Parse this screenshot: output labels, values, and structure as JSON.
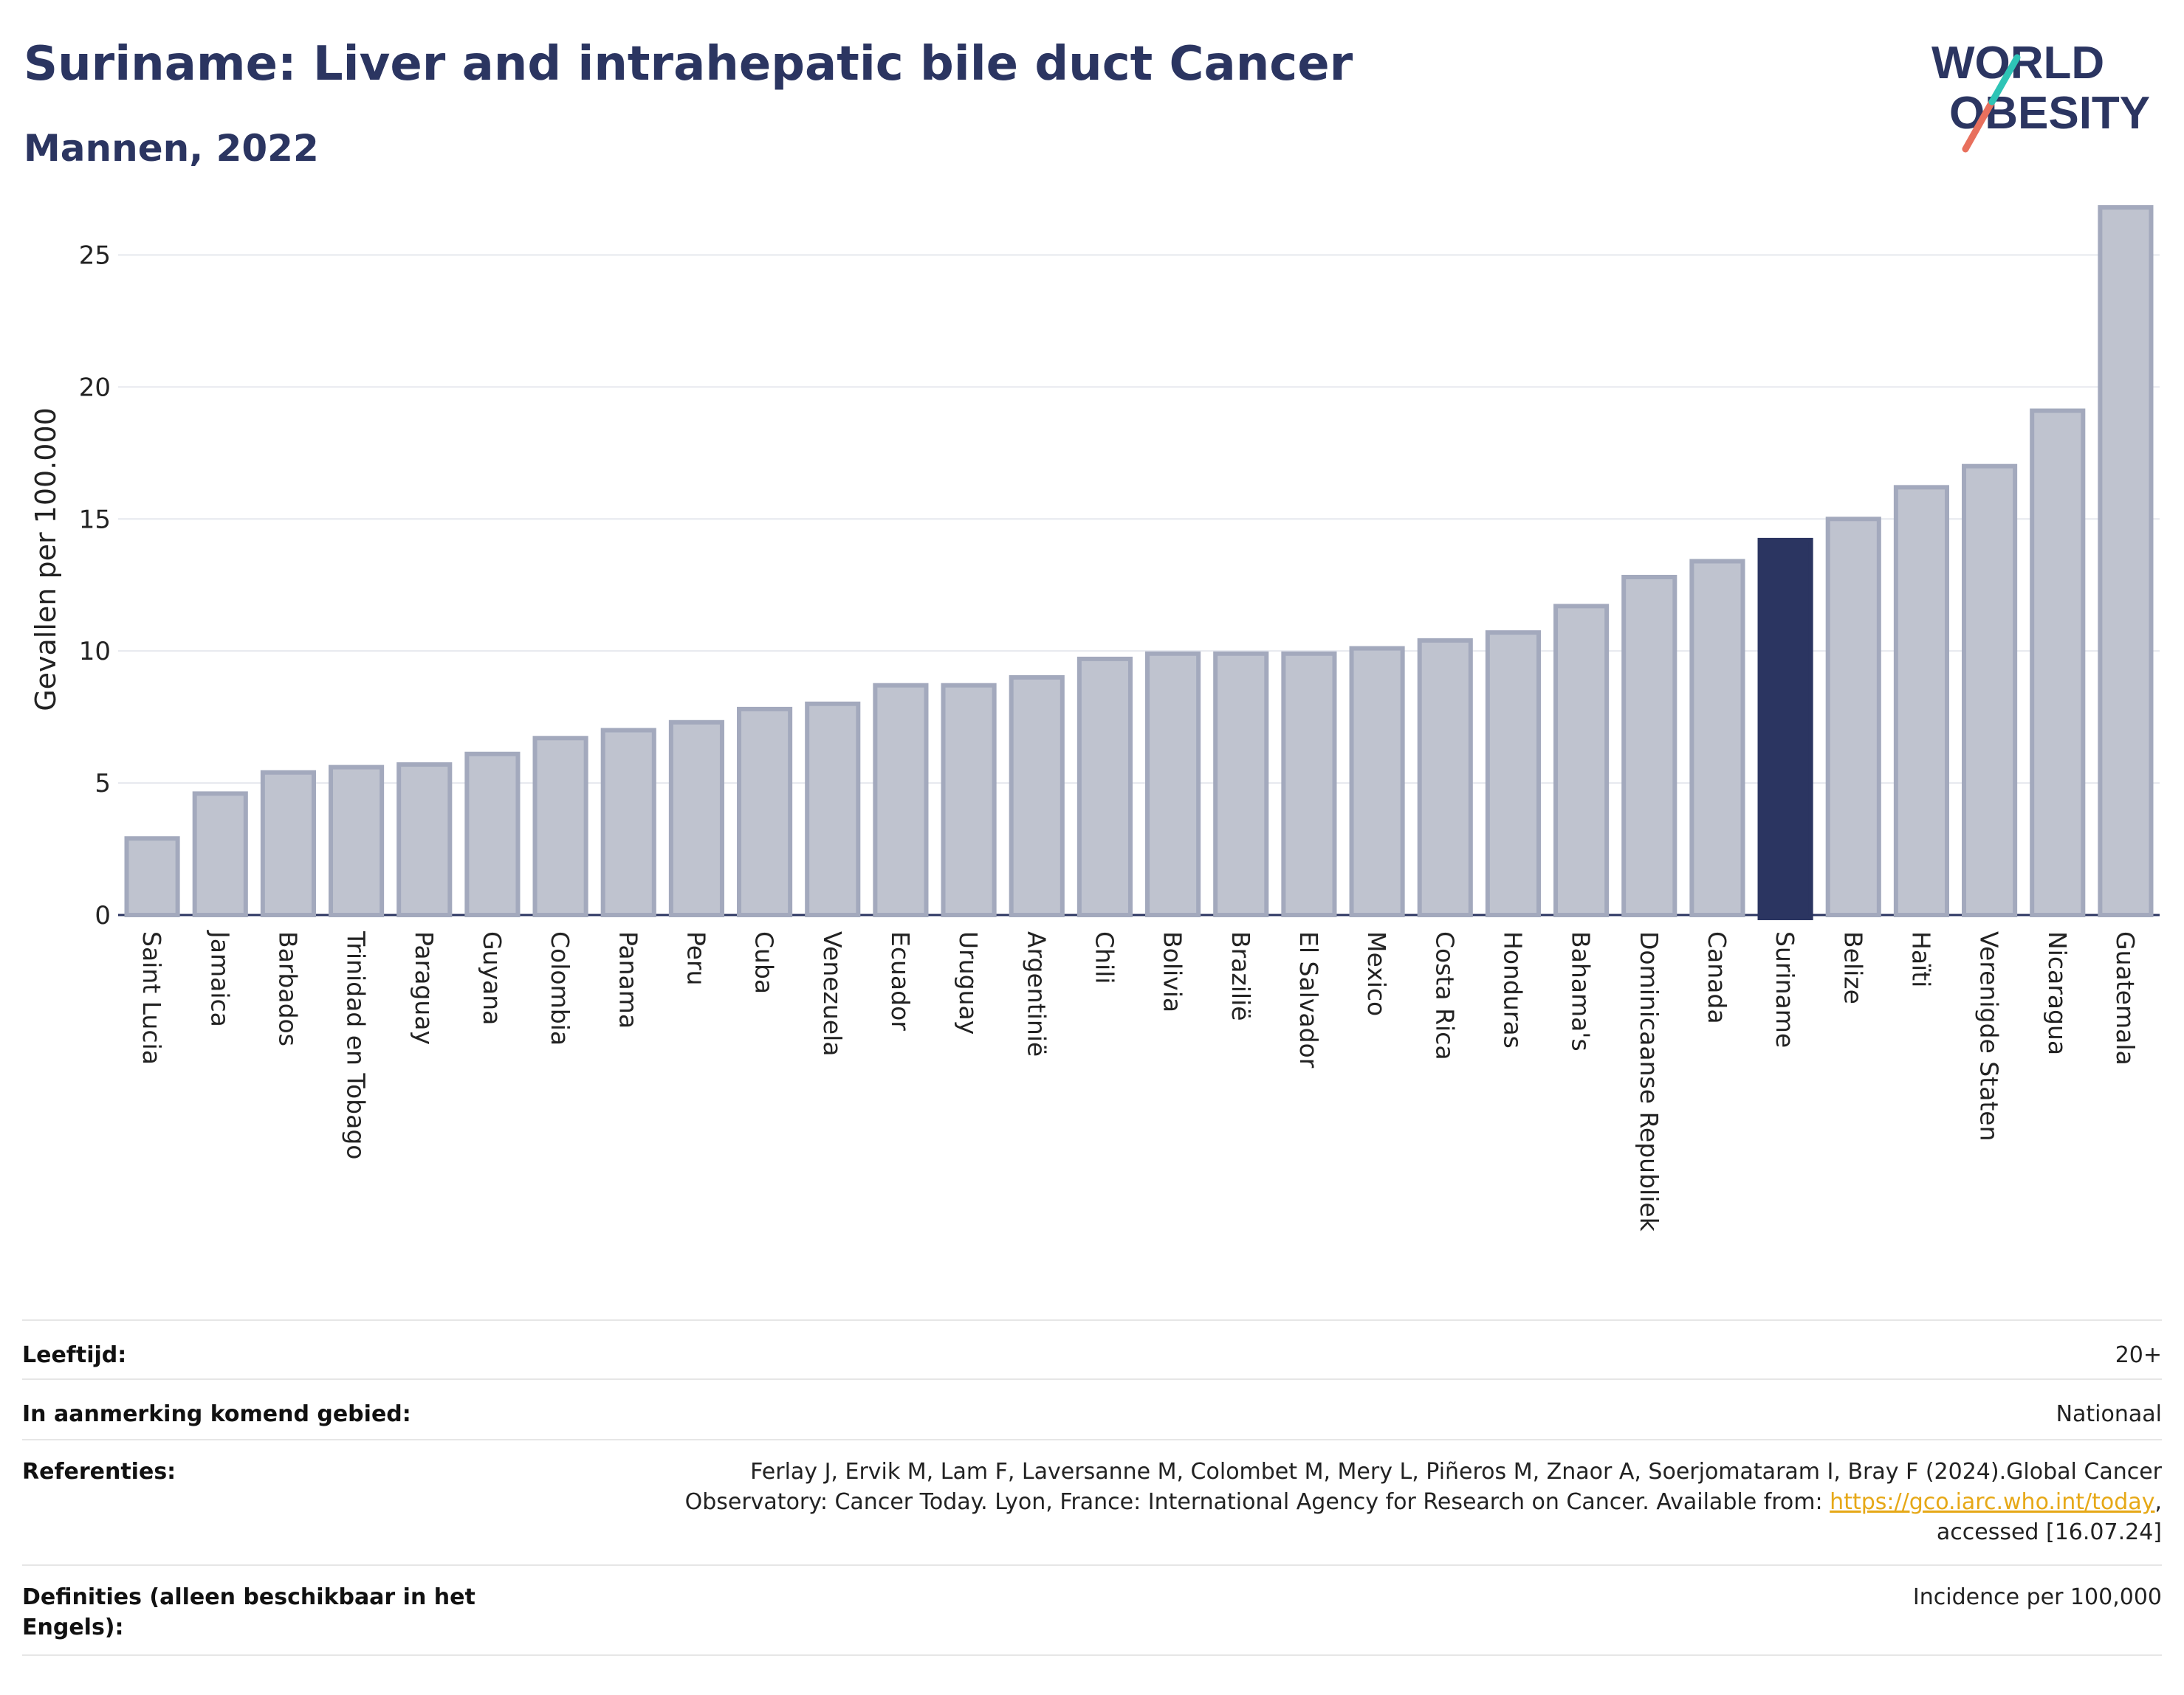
{
  "header": {
    "title": "Suriname: Liver and intrahepatic bile duct Cancer",
    "subtitle": "Mannen, 2022",
    "logo_line1": "WORLD",
    "logo_line2": "OBESITY"
  },
  "chart_data": {
    "type": "bar",
    "title": "Suriname: Liver and intrahepatic bile duct Cancer",
    "subtitle": "Mannen, 2022",
    "ylabel": "Gevallen per 100.000",
    "xlabel": "",
    "ylim": [
      0,
      27.5
    ],
    "yticks": [
      0,
      5,
      10,
      15,
      20,
      25
    ],
    "grid": true,
    "highlight": "Suriname",
    "colors": {
      "bar": "#bfc3cf",
      "bar_border": "#a3a9bd",
      "highlight": "#2b3561",
      "grid": "#e6e8ee",
      "axis": "#2b3561"
    },
    "categories": [
      "Saint Lucia",
      "Jamaica",
      "Barbados",
      "Trinidad en Tobago",
      "Paraguay",
      "Guyana",
      "Colombia",
      "Panama",
      "Peru",
      "Cuba",
      "Venezuela",
      "Ecuador",
      "Uruguay",
      "Argentinië",
      "Chili",
      "Bolivia",
      "Brazilië",
      "El Salvador",
      "Mexico",
      "Costa Rica",
      "Honduras",
      "Bahama's",
      "Dominicaanse Republiek",
      "Canada",
      "Suriname",
      "Belize",
      "Haïti",
      "Verenigde Staten",
      "Nicaragua",
      "Guatemala"
    ],
    "values": [
      2.9,
      4.6,
      5.4,
      5.6,
      5.7,
      6.1,
      6.7,
      7.0,
      7.3,
      7.8,
      8.0,
      8.7,
      8.7,
      9.0,
      9.7,
      9.9,
      9.9,
      9.9,
      10.1,
      10.4,
      10.7,
      11.7,
      12.8,
      13.4,
      14.2,
      15.0,
      16.2,
      17.0,
      19.1,
      26.8
    ]
  },
  "meta": {
    "age_label": "Leeftijd:",
    "age_value": "20+",
    "area_label": "In aanmerking komend gebied:",
    "area_value": "Nationaal",
    "ref_label": "Referenties:",
    "ref_text_1": "Ferlay J, Ervik M, Lam F, Laversanne M, Colombet M, Mery L, Piñeros M, Znaor A, Soerjomataram I, Bray F (2024).Global Cancer Observatory: Cancer Today. Lyon, France: International Agency for Research on Cancer. Available from: ",
    "ref_link": "https://gco.iarc.who.int/today",
    "ref_text_2": ", accessed [16.07.24]",
    "def_label": "Definities (alleen beschikbaar in het Engels):",
    "def_value": "Incidence per 100,000"
  }
}
